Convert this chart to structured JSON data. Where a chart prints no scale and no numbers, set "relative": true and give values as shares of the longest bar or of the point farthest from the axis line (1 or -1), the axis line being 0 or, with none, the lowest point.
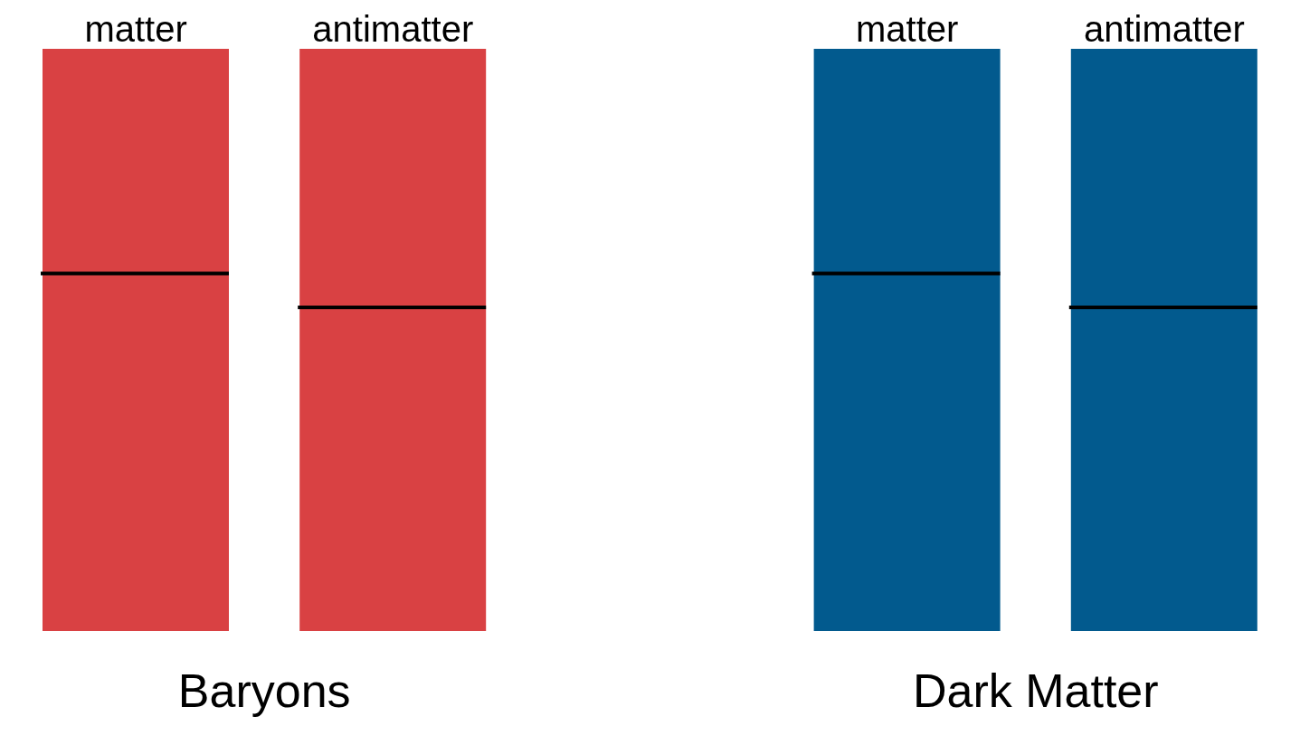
{
  "chart_data": {
    "type": "bar",
    "stacked": true,
    "relative": true,
    "categories": [
      "matter",
      "antimatter",
      null,
      "matter",
      "antimatter"
    ],
    "series": [
      {
        "colors": [
          "#d94143",
          "#d94143",
          null,
          "#025a8e",
          "#025a8e"
        ],
        "values": [
          0.614,
          0.556,
          null,
          0.614,
          0.556
        ]
      },
      {
        "colors": [
          "#d94143",
          "#d94143",
          null,
          "#025a8e",
          "#025a8e"
        ],
        "values": [
          0.386,
          0.444,
          null,
          0.386,
          0.444
        ]
      }
    ],
    "annotations": [
      "Baryons",
      "Dark Matter"
    ],
    "grid": false,
    "legend": false
  }
}
